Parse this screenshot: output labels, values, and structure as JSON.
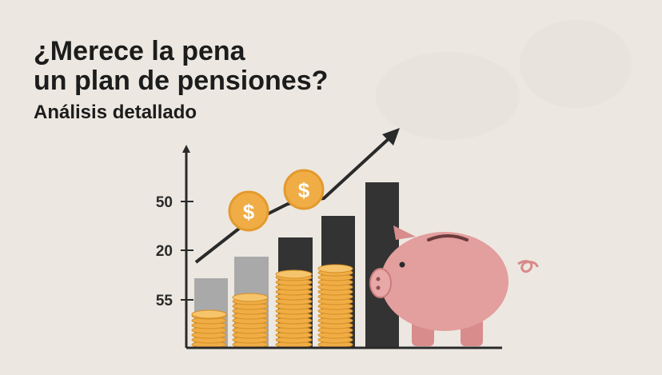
{
  "header": {
    "title_lines": [
      "¿Merece la pena",
      "un plan de pensiones?"
    ],
    "subtitle": "Análisis detallado"
  },
  "illustration": {
    "axis_labels": [
      "50",
      "20",
      "55"
    ],
    "coin_symbol": "$"
  }
}
